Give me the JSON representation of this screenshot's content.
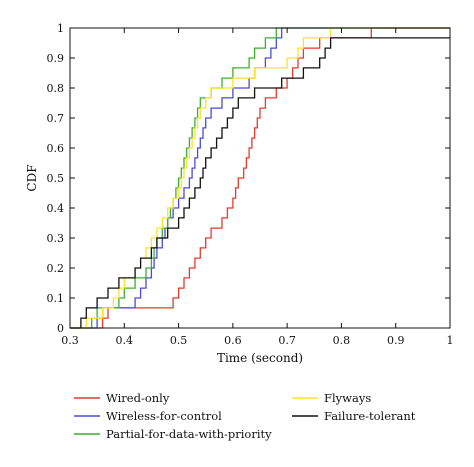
{
  "chart_data": {
    "type": "line",
    "step": true,
    "xlabel": "Time (second)",
    "ylabel": "CDF",
    "xlim": [
      0.3,
      1.0
    ],
    "ylim": [
      0,
      1
    ],
    "xticks": [
      "0.3",
      "0.4",
      "0.5",
      "0.6",
      "0.7",
      "0.8",
      "0.9",
      "1"
    ],
    "yticks": [
      "0",
      "0.1",
      "0.2",
      "0.3",
      "0.4",
      "0.5",
      "0.6",
      "0.7",
      "0.8",
      "0.9",
      "1"
    ],
    "grid": false,
    "legend_position": "bottom, below plot, two columns",
    "series": [
      {
        "name": "Wired-only",
        "color": "#e8392b",
        "points": [
          [
            0.3,
            0
          ],
          [
            0.36,
            0
          ],
          [
            0.36,
            0.033
          ],
          [
            0.37,
            0.033
          ],
          [
            0.37,
            0.067
          ],
          [
            0.49,
            0.067
          ],
          [
            0.49,
            0.1
          ],
          [
            0.5,
            0.1
          ],
          [
            0.5,
            0.133
          ],
          [
            0.51,
            0.133
          ],
          [
            0.51,
            0.167
          ],
          [
            0.52,
            0.167
          ],
          [
            0.52,
            0.2
          ],
          [
            0.53,
            0.2
          ],
          [
            0.53,
            0.233
          ],
          [
            0.54,
            0.233
          ],
          [
            0.54,
            0.267
          ],
          [
            0.55,
            0.267
          ],
          [
            0.55,
            0.3
          ],
          [
            0.56,
            0.3
          ],
          [
            0.56,
            0.333
          ],
          [
            0.58,
            0.333
          ],
          [
            0.58,
            0.367
          ],
          [
            0.59,
            0.367
          ],
          [
            0.59,
            0.4
          ],
          [
            0.6,
            0.4
          ],
          [
            0.6,
            0.433
          ],
          [
            0.605,
            0.433
          ],
          [
            0.605,
            0.467
          ],
          [
            0.61,
            0.467
          ],
          [
            0.61,
            0.5
          ],
          [
            0.62,
            0.5
          ],
          [
            0.62,
            0.533
          ],
          [
            0.625,
            0.533
          ],
          [
            0.625,
            0.567
          ],
          [
            0.63,
            0.567
          ],
          [
            0.63,
            0.6
          ],
          [
            0.635,
            0.6
          ],
          [
            0.635,
            0.633
          ],
          [
            0.64,
            0.633
          ],
          [
            0.64,
            0.667
          ],
          [
            0.645,
            0.667
          ],
          [
            0.645,
            0.7
          ],
          [
            0.65,
            0.7
          ],
          [
            0.65,
            0.733
          ],
          [
            0.66,
            0.733
          ],
          [
            0.66,
            0.767
          ],
          [
            0.68,
            0.767
          ],
          [
            0.68,
            0.8
          ],
          [
            0.7,
            0.8
          ],
          [
            0.7,
            0.833
          ],
          [
            0.71,
            0.833
          ],
          [
            0.71,
            0.867
          ],
          [
            0.72,
            0.867
          ],
          [
            0.72,
            0.9
          ],
          [
            0.73,
            0.9
          ],
          [
            0.73,
            0.933
          ],
          [
            0.76,
            0.933
          ],
          [
            0.76,
            0.967
          ],
          [
            0.855,
            0.967
          ],
          [
            0.855,
            1
          ],
          [
            1,
            1
          ]
        ]
      },
      {
        "name": "Wireless-for-control",
        "color": "#4a4ad8",
        "points": [
          [
            0.3,
            0
          ],
          [
            0.35,
            0
          ],
          [
            0.35,
            0.033
          ],
          [
            0.36,
            0.033
          ],
          [
            0.36,
            0.067
          ],
          [
            0.42,
            0.067
          ],
          [
            0.42,
            0.1
          ],
          [
            0.43,
            0.1
          ],
          [
            0.43,
            0.133
          ],
          [
            0.44,
            0.133
          ],
          [
            0.44,
            0.167
          ],
          [
            0.45,
            0.167
          ],
          [
            0.45,
            0.2
          ],
          [
            0.455,
            0.2
          ],
          [
            0.455,
            0.233
          ],
          [
            0.46,
            0.233
          ],
          [
            0.46,
            0.267
          ],
          [
            0.47,
            0.267
          ],
          [
            0.47,
            0.3
          ],
          [
            0.475,
            0.3
          ],
          [
            0.475,
            0.333
          ],
          [
            0.48,
            0.333
          ],
          [
            0.48,
            0.367
          ],
          [
            0.49,
            0.367
          ],
          [
            0.49,
            0.4
          ],
          [
            0.5,
            0.4
          ],
          [
            0.5,
            0.433
          ],
          [
            0.51,
            0.433
          ],
          [
            0.51,
            0.467
          ],
          [
            0.52,
            0.467
          ],
          [
            0.52,
            0.5
          ],
          [
            0.525,
            0.5
          ],
          [
            0.525,
            0.533
          ],
          [
            0.53,
            0.533
          ],
          [
            0.53,
            0.567
          ],
          [
            0.535,
            0.567
          ],
          [
            0.535,
            0.6
          ],
          [
            0.54,
            0.6
          ],
          [
            0.54,
            0.633
          ],
          [
            0.545,
            0.633
          ],
          [
            0.545,
            0.667
          ],
          [
            0.55,
            0.667
          ],
          [
            0.55,
            0.7
          ],
          [
            0.56,
            0.7
          ],
          [
            0.56,
            0.733
          ],
          [
            0.58,
            0.733
          ],
          [
            0.58,
            0.767
          ],
          [
            0.6,
            0.767
          ],
          [
            0.6,
            0.8
          ],
          [
            0.63,
            0.8
          ],
          [
            0.63,
            0.833
          ],
          [
            0.64,
            0.833
          ],
          [
            0.64,
            0.867
          ],
          [
            0.66,
            0.867
          ],
          [
            0.66,
            0.9
          ],
          [
            0.67,
            0.9
          ],
          [
            0.67,
            0.933
          ],
          [
            0.68,
            0.933
          ],
          [
            0.68,
            0.967
          ],
          [
            0.69,
            0.967
          ],
          [
            0.69,
            1
          ],
          [
            1,
            1
          ]
        ]
      },
      {
        "name": "Partial-for-data-with-priority",
        "color": "#3bb030",
        "points": [
          [
            0.3,
            0
          ],
          [
            0.34,
            0
          ],
          [
            0.34,
            0.033
          ],
          [
            0.35,
            0.033
          ],
          [
            0.35,
            0.067
          ],
          [
            0.39,
            0.067
          ],
          [
            0.39,
            0.1
          ],
          [
            0.4,
            0.1
          ],
          [
            0.4,
            0.133
          ],
          [
            0.42,
            0.133
          ],
          [
            0.42,
            0.167
          ],
          [
            0.44,
            0.167
          ],
          [
            0.44,
            0.2
          ],
          [
            0.45,
            0.2
          ],
          [
            0.45,
            0.233
          ],
          [
            0.455,
            0.233
          ],
          [
            0.455,
            0.267
          ],
          [
            0.46,
            0.267
          ],
          [
            0.46,
            0.3
          ],
          [
            0.47,
            0.3
          ],
          [
            0.47,
            0.333
          ],
          [
            0.48,
            0.333
          ],
          [
            0.48,
            0.367
          ],
          [
            0.485,
            0.367
          ],
          [
            0.485,
            0.4
          ],
          [
            0.49,
            0.4
          ],
          [
            0.49,
            0.433
          ],
          [
            0.495,
            0.433
          ],
          [
            0.495,
            0.467
          ],
          [
            0.5,
            0.467
          ],
          [
            0.5,
            0.5
          ],
          [
            0.505,
            0.5
          ],
          [
            0.505,
            0.533
          ],
          [
            0.51,
            0.533
          ],
          [
            0.51,
            0.567
          ],
          [
            0.515,
            0.567
          ],
          [
            0.515,
            0.6
          ],
          [
            0.52,
            0.6
          ],
          [
            0.52,
            0.633
          ],
          [
            0.525,
            0.633
          ],
          [
            0.525,
            0.667
          ],
          [
            0.53,
            0.667
          ],
          [
            0.53,
            0.7
          ],
          [
            0.535,
            0.7
          ],
          [
            0.535,
            0.733
          ],
          [
            0.54,
            0.733
          ],
          [
            0.54,
            0.767
          ],
          [
            0.56,
            0.767
          ],
          [
            0.56,
            0.8
          ],
          [
            0.58,
            0.8
          ],
          [
            0.58,
            0.833
          ],
          [
            0.6,
            0.833
          ],
          [
            0.6,
            0.867
          ],
          [
            0.63,
            0.867
          ],
          [
            0.63,
            0.9
          ],
          [
            0.64,
            0.9
          ],
          [
            0.64,
            0.933
          ],
          [
            0.66,
            0.933
          ],
          [
            0.66,
            0.967
          ],
          [
            0.68,
            0.967
          ],
          [
            0.68,
            1
          ],
          [
            1,
            1
          ]
        ]
      },
      {
        "name": "Flyways",
        "color": "#ffe22a",
        "points": [
          [
            0.3,
            0
          ],
          [
            0.33,
            0
          ],
          [
            0.33,
            0.033
          ],
          [
            0.36,
            0.033
          ],
          [
            0.36,
            0.067
          ],
          [
            0.38,
            0.067
          ],
          [
            0.38,
            0.1
          ],
          [
            0.39,
            0.1
          ],
          [
            0.39,
            0.133
          ],
          [
            0.4,
            0.133
          ],
          [
            0.4,
            0.167
          ],
          [
            0.42,
            0.167
          ],
          [
            0.42,
            0.2
          ],
          [
            0.43,
            0.2
          ],
          [
            0.43,
            0.233
          ],
          [
            0.44,
            0.233
          ],
          [
            0.44,
            0.267
          ],
          [
            0.45,
            0.267
          ],
          [
            0.45,
            0.3
          ],
          [
            0.46,
            0.3
          ],
          [
            0.46,
            0.333
          ],
          [
            0.47,
            0.333
          ],
          [
            0.47,
            0.367
          ],
          [
            0.48,
            0.367
          ],
          [
            0.48,
            0.4
          ],
          [
            0.49,
            0.4
          ],
          [
            0.49,
            0.433
          ],
          [
            0.5,
            0.433
          ],
          [
            0.5,
            0.467
          ],
          [
            0.505,
            0.467
          ],
          [
            0.505,
            0.5
          ],
          [
            0.51,
            0.5
          ],
          [
            0.51,
            0.533
          ],
          [
            0.515,
            0.533
          ],
          [
            0.515,
            0.567
          ],
          [
            0.52,
            0.567
          ],
          [
            0.52,
            0.6
          ],
          [
            0.525,
            0.6
          ],
          [
            0.525,
            0.633
          ],
          [
            0.53,
            0.633
          ],
          [
            0.53,
            0.667
          ],
          [
            0.535,
            0.667
          ],
          [
            0.535,
            0.7
          ],
          [
            0.54,
            0.7
          ],
          [
            0.54,
            0.733
          ],
          [
            0.55,
            0.733
          ],
          [
            0.55,
            0.767
          ],
          [
            0.56,
            0.767
          ],
          [
            0.56,
            0.8
          ],
          [
            0.6,
            0.8
          ],
          [
            0.6,
            0.833
          ],
          [
            0.64,
            0.833
          ],
          [
            0.64,
            0.867
          ],
          [
            0.7,
            0.867
          ],
          [
            0.7,
            0.9
          ],
          [
            0.72,
            0.9
          ],
          [
            0.72,
            0.933
          ],
          [
            0.73,
            0.933
          ],
          [
            0.73,
            0.967
          ],
          [
            0.78,
            0.967
          ],
          [
            0.78,
            1
          ],
          [
            1,
            1
          ]
        ]
      },
      {
        "name": "Failure-tolerant",
        "color": "#111111",
        "points": [
          [
            0.3,
            0
          ],
          [
            0.32,
            0
          ],
          [
            0.32,
            0.033
          ],
          [
            0.33,
            0.033
          ],
          [
            0.33,
            0.067
          ],
          [
            0.35,
            0.067
          ],
          [
            0.35,
            0.1
          ],
          [
            0.37,
            0.1
          ],
          [
            0.37,
            0.133
          ],
          [
            0.39,
            0.133
          ],
          [
            0.39,
            0.167
          ],
          [
            0.42,
            0.167
          ],
          [
            0.42,
            0.2
          ],
          [
            0.43,
            0.2
          ],
          [
            0.43,
            0.233
          ],
          [
            0.45,
            0.233
          ],
          [
            0.45,
            0.267
          ],
          [
            0.46,
            0.267
          ],
          [
            0.46,
            0.3
          ],
          [
            0.48,
            0.3
          ],
          [
            0.48,
            0.333
          ],
          [
            0.5,
            0.333
          ],
          [
            0.5,
            0.367
          ],
          [
            0.51,
            0.367
          ],
          [
            0.51,
            0.4
          ],
          [
            0.52,
            0.4
          ],
          [
            0.52,
            0.433
          ],
          [
            0.53,
            0.433
          ],
          [
            0.53,
            0.467
          ],
          [
            0.54,
            0.467
          ],
          [
            0.54,
            0.5
          ],
          [
            0.545,
            0.5
          ],
          [
            0.545,
            0.533
          ],
          [
            0.55,
            0.533
          ],
          [
            0.55,
            0.567
          ],
          [
            0.56,
            0.567
          ],
          [
            0.56,
            0.6
          ],
          [
            0.57,
            0.6
          ],
          [
            0.57,
            0.633
          ],
          [
            0.58,
            0.633
          ],
          [
            0.58,
            0.667
          ],
          [
            0.59,
            0.667
          ],
          [
            0.59,
            0.7
          ],
          [
            0.6,
            0.7
          ],
          [
            0.6,
            0.733
          ],
          [
            0.61,
            0.733
          ],
          [
            0.61,
            0.767
          ],
          [
            0.64,
            0.767
          ],
          [
            0.64,
            0.8
          ],
          [
            0.69,
            0.8
          ],
          [
            0.69,
            0.833
          ],
          [
            0.73,
            0.833
          ],
          [
            0.73,
            0.867
          ],
          [
            0.76,
            0.867
          ],
          [
            0.76,
            0.9
          ],
          [
            0.77,
            0.9
          ],
          [
            0.77,
            0.933
          ],
          [
            0.78,
            0.933
          ],
          [
            0.78,
            0.967
          ],
          [
            1,
            0.967
          ]
        ]
      }
    ]
  }
}
